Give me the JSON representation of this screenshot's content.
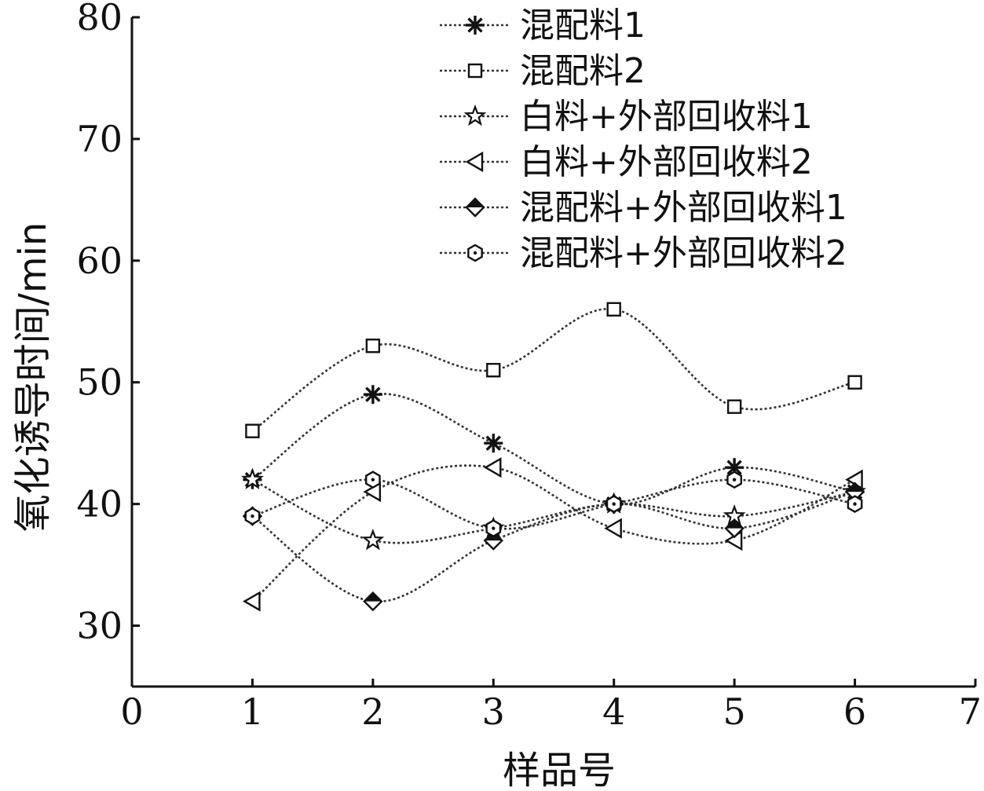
{
  "chart_data": {
    "type": "line",
    "title": "",
    "xlabel": "样品号",
    "ylabel": "氧化诱导时间/min",
    "xlim": [
      0,
      7
    ],
    "ylim": [
      25,
      80
    ],
    "xticks": [
      0,
      1,
      2,
      3,
      4,
      5,
      6,
      7
    ],
    "yticks": [
      30,
      40,
      50,
      60,
      70,
      80
    ],
    "x": [
      1,
      2,
      3,
      4,
      5,
      6
    ],
    "grid": false,
    "legend_position": "top-right",
    "series": [
      {
        "name": "混配料1",
        "marker": "asterisk",
        "values": [
          42,
          49,
          45,
          40,
          43,
          41
        ]
      },
      {
        "name": "混配料2",
        "marker": "square-open",
        "values": [
          46,
          53,
          51,
          56,
          48,
          50
        ]
      },
      {
        "name": "白料+外部回收料1",
        "marker": "star-open",
        "values": [
          42,
          37,
          38,
          40,
          39,
          41
        ]
      },
      {
        "name": "白料+外部回收料2",
        "marker": "triangle-left-open",
        "values": [
          32,
          41,
          43,
          38,
          37,
          42
        ]
      },
      {
        "name": "混配料+外部回收料1",
        "marker": "diamond-half",
        "values": [
          39,
          32,
          37,
          40,
          38,
          41
        ]
      },
      {
        "name": "混配料+外部回收料2",
        "marker": "hexagon-dot",
        "values": [
          39,
          42,
          38,
          40,
          42,
          40
        ]
      }
    ]
  }
}
